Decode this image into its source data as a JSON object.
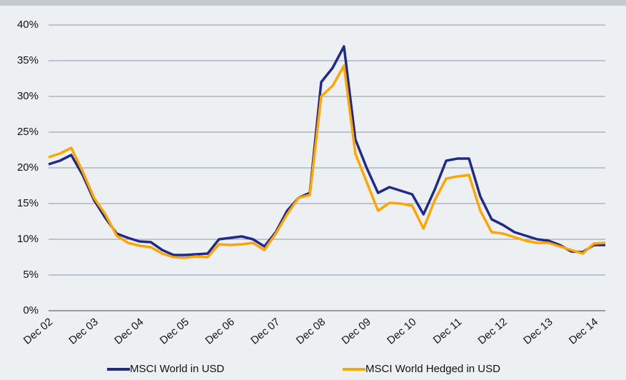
{
  "chart_data": {
    "type": "line",
    "categories": [
      "Dec 02",
      null,
      null,
      null,
      "Dec 03",
      null,
      null,
      null,
      "Dec 04",
      null,
      null,
      null,
      "Dec 05",
      null,
      null,
      null,
      "Dec 06",
      null,
      null,
      null,
      "Dec 07",
      null,
      null,
      null,
      "Dec 08",
      null,
      null,
      null,
      "Dec 09",
      null,
      null,
      null,
      "Dec 10",
      null,
      null,
      null,
      "Dec 11",
      null,
      null,
      null,
      "Dec 12",
      null,
      null,
      null,
      "Dec 13",
      null,
      null,
      null,
      "Dec 14",
      null
    ],
    "series": [
      {
        "name": "MSCI World in USD",
        "color": "#1f2a8a",
        "values": [
          20.5,
          21,
          21.8,
          19,
          15.5,
          13,
          10.8,
          10.2,
          9.7,
          9.6,
          8.5,
          7.8,
          7.8,
          7.9,
          8,
          10,
          10.2,
          10.4,
          10,
          9,
          11,
          14,
          15.8,
          16.5,
          32,
          34,
          37,
          24,
          20,
          16.5,
          17.3,
          16.8,
          16.3,
          13.5,
          17,
          21,
          21.3,
          21.3,
          16,
          12.8,
          12,
          11,
          10.5,
          10,
          9.8,
          9.2,
          8.3,
          8.2,
          9.2,
          9.2
        ]
      },
      {
        "name": "MSCI World Hedged in USD",
        "color": "#ffa500",
        "values": [
          21.5,
          22,
          22.8,
          19.5,
          15.8,
          13.5,
          10.5,
          9.5,
          9.1,
          8.9,
          8,
          7.5,
          7.4,
          7.6,
          7.5,
          9.3,
          9.2,
          9.3,
          9.5,
          8.5,
          10.8,
          13.5,
          15.8,
          16.2,
          30,
          31.5,
          34.3,
          22,
          18,
          14,
          15.1,
          15,
          14.7,
          11.5,
          15.5,
          18.5,
          18.8,
          19,
          14,
          11,
          10.8,
          10.3,
          9.8,
          9.5,
          9.5,
          9,
          8.5,
          8,
          9.4,
          9.5
        ]
      }
    ],
    "ylim": [
      0,
      40
    ],
    "yticks": [
      {
        "value": 0,
        "label": "0%"
      },
      {
        "value": 5,
        "label": "5%"
      },
      {
        "value": 10,
        "label": "10%"
      },
      {
        "value": 15,
        "label": "15%"
      },
      {
        "value": 20,
        "label": "20%"
      },
      {
        "value": 25,
        "label": "25%"
      },
      {
        "value": 30,
        "label": "30%"
      },
      {
        "value": 35,
        "label": "35%"
      },
      {
        "value": 40,
        "label": "40%"
      }
    ],
    "grid": true,
    "legend": "bottom"
  }
}
